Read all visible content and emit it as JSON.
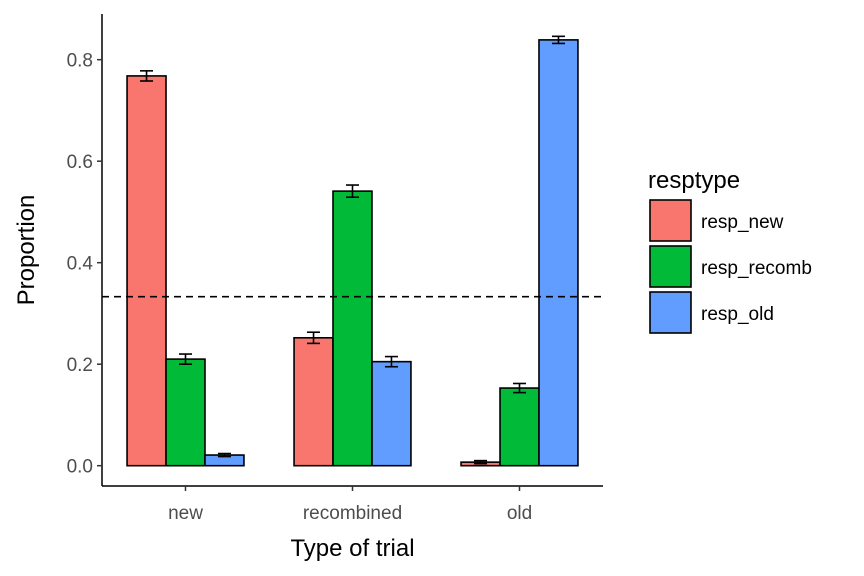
{
  "chart_data": {
    "type": "bar",
    "categories": [
      "new",
      "recombined",
      "old"
    ],
    "series": [
      {
        "name": "resp_new",
        "color": "#F8766D",
        "values": [
          0.768,
          0.252,
          0.007
        ],
        "error": [
          0.01,
          0.011,
          0.003
        ]
      },
      {
        "name": "resp_recomb",
        "color": "#00BA38",
        "values": [
          0.21,
          0.541,
          0.153
        ],
        "error": [
          0.01,
          0.012,
          0.009
        ]
      },
      {
        "name": "resp_old",
        "color": "#619CFF",
        "values": [
          0.021,
          0.205,
          0.839
        ],
        "error": [
          0.003,
          0.01,
          0.007
        ]
      }
    ],
    "xlabel": "Type of trial",
    "ylabel": "Proportion",
    "ylim": [
      -0.04,
      0.89
    ],
    "yticks": [
      0.0,
      0.2,
      0.4,
      0.6,
      0.8
    ],
    "ytick_labels": [
      "0.0",
      "0.2",
      "0.4",
      "0.6",
      "0.8"
    ],
    "reference_line": {
      "y": 0.333,
      "style": "dashed"
    },
    "legend": {
      "title": "resptype",
      "placement": "right"
    },
    "grid": false
  }
}
